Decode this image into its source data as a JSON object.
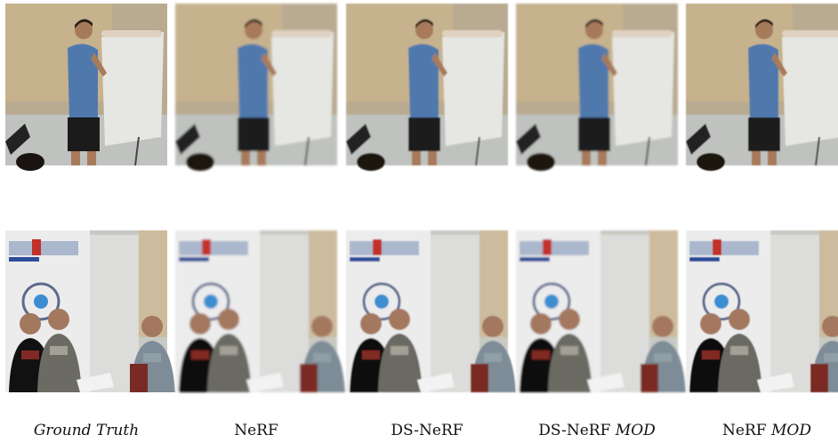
{
  "columns": [
    {
      "method": "Ground Truth",
      "variant": null,
      "italic": true
    },
    {
      "method": "NeRF",
      "variant": null,
      "italic": false
    },
    {
      "method": "DS-NeRF",
      "variant": null,
      "italic": false
    },
    {
      "method": "DS-NeRF",
      "variant": "MOD",
      "italic": false
    },
    {
      "method": "NeRF",
      "variant": "MOD",
      "italic": false
    }
  ]
}
